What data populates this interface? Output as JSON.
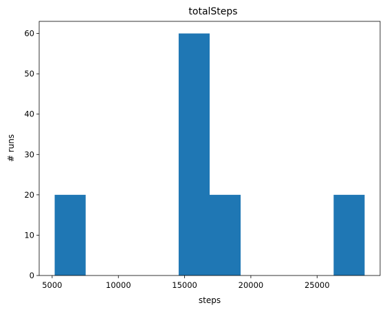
{
  "chart_data": {
    "type": "bar",
    "title": "totalSteps",
    "xlabel": "steps",
    "ylabel": "# runs",
    "bins": [
      {
        "x0": 5190,
        "x1": 7530,
        "count": 20
      },
      {
        "x0": 7530,
        "x1": 9870,
        "count": 0
      },
      {
        "x0": 9870,
        "x1": 12210,
        "count": 0
      },
      {
        "x0": 12210,
        "x1": 14550,
        "count": 0
      },
      {
        "x0": 14550,
        "x1": 16890,
        "count": 60
      },
      {
        "x0": 16890,
        "x1": 19230,
        "count": 20
      },
      {
        "x0": 19230,
        "x1": 21570,
        "count": 0
      },
      {
        "x0": 21570,
        "x1": 23910,
        "count": 0
      },
      {
        "x0": 23910,
        "x1": 26250,
        "count": 0
      },
      {
        "x0": 26250,
        "x1": 28590,
        "count": 20
      }
    ],
    "xlim": [
      4020,
      29760
    ],
    "ylim": [
      0,
      63
    ],
    "xticks": [
      5000,
      10000,
      15000,
      20000,
      25000
    ],
    "yticks": [
      0,
      10,
      20,
      30,
      40,
      50,
      60
    ],
    "bar_color": "#1f77b4",
    "grid": false,
    "legend": "none"
  }
}
